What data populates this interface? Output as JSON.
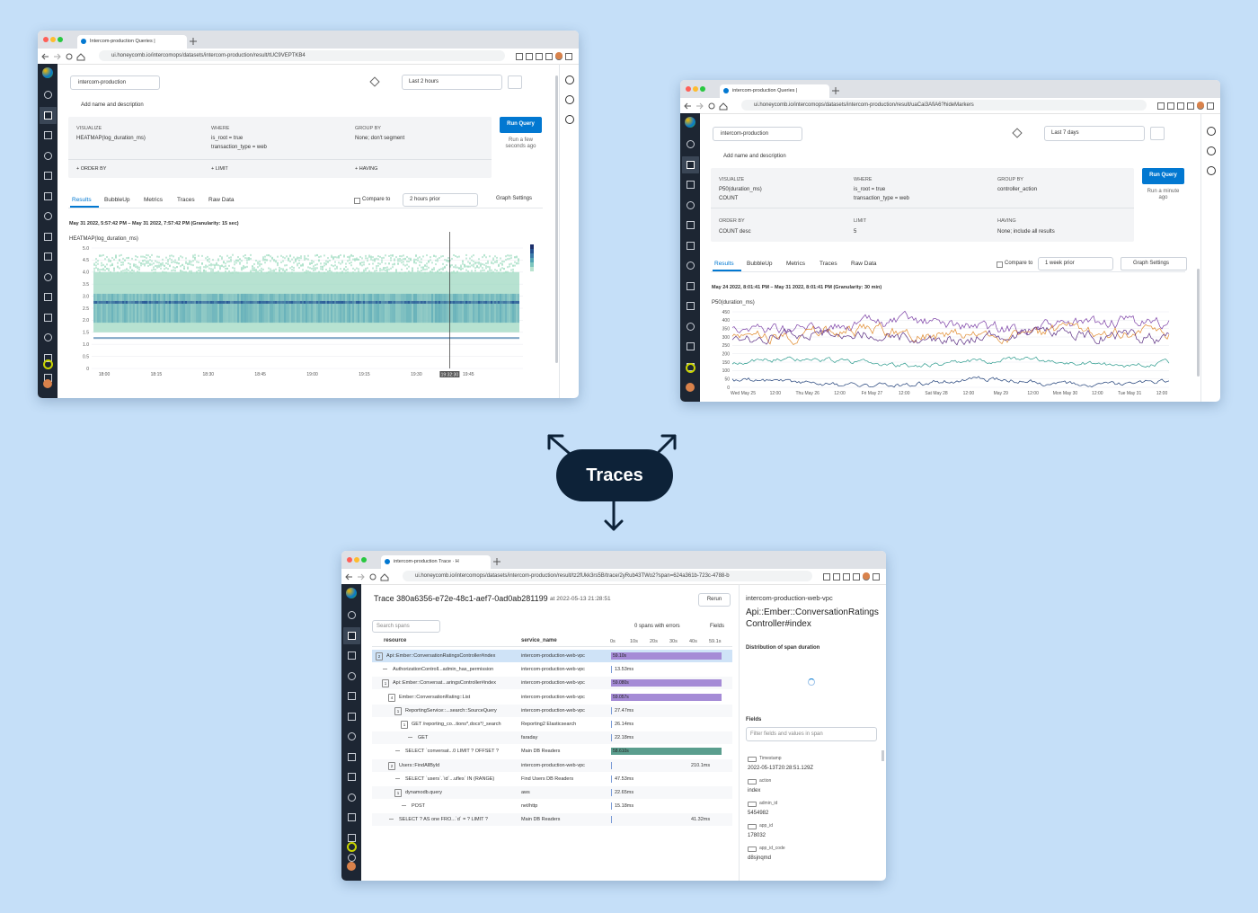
{
  "center_label": "Traces",
  "query_windows": [
    {
      "tab": "Intercom-production Queries |",
      "url": "ui.honeycomb.io/intercomops/datasets/intercom-production/result/tUC9VEPTKB4",
      "dataset": "intercom-production",
      "time_range": "Last 2 hours",
      "add_name": "Add name and description",
      "visualize_label": "VISUALIZE",
      "visualize": [
        "HEATMAP(log_duration_ms)"
      ],
      "where_label": "WHERE",
      "where": [
        "is_root = true",
        "transaction_type = web"
      ],
      "group_by_label": "GROUP BY",
      "group_by": [
        "None; don't segment"
      ],
      "clauses": [
        {
          "label": "+ ORDER BY"
        },
        {
          "label": "+ LIMIT"
        },
        {
          "label": "+ HAVING"
        }
      ],
      "run_query": "Run Query",
      "run_note": "Run a few seconds ago",
      "tabs": [
        "Results",
        "BubbleUp",
        "Metrics",
        "Traces",
        "Raw Data"
      ],
      "compare_label": "Compare to",
      "compare": "2 hours prior",
      "graph_settings": "Graph Settings",
      "range_text": "May 31 2022, 5:57:42 PM – May 31 2022, 7:57:42 PM (Granularity: 15 sec)",
      "chart_title": "HEATMAP(log_duration_ms)",
      "chart_kind": "heatmap",
      "yticks": [
        "5.0",
        "4.5",
        "4.0",
        "3.5",
        "3.0",
        "2.5",
        "2.0",
        "1.5",
        "1.0",
        "0.5",
        "0"
      ],
      "xticks": [
        "18:00",
        "18:15",
        "18:30",
        "18:45",
        "19:00",
        "19:15",
        "19:30",
        "19:45"
      ],
      "cursor_label": "19:32:30"
    },
    {
      "tab": "intercom-production Queries |",
      "url": "ui.honeycomb.io/intercomops/datasets/intercom-production/result/uaCai3AfiA6?hideMarkers",
      "dataset": "intercom-production",
      "time_range": "Last 7 days",
      "add_name": "Add name and description",
      "visualize_label": "VISUALIZE",
      "visualize": [
        "P50(duration_ms)",
        "COUNT"
      ],
      "where_label": "WHERE",
      "where": [
        "is_root = true",
        "transaction_type = web"
      ],
      "group_by_label": "GROUP BY",
      "group_by": [
        "controller_action"
      ],
      "clauses": [
        {
          "label": "ORDER BY",
          "value": "COUNT desc"
        },
        {
          "label": "LIMIT",
          "value": "5"
        },
        {
          "label": "HAVING",
          "value": "None; include all results"
        }
      ],
      "run_query": "Run Query",
      "run_note": "Run a minute ago",
      "tabs": [
        "Results",
        "BubbleUp",
        "Metrics",
        "Traces",
        "Raw Data"
      ],
      "compare_label": "Compare to",
      "compare": "1 week prior",
      "graph_settings": "Graph Settings",
      "range_text": "May 24 2022, 8:01:41 PM – May 31 2022, 8:01:41 PM (Granularity: 30 min)",
      "chart_title": "P50(duration_ms)",
      "chart_kind": "lines",
      "yticks": [
        "450",
        "400",
        "350",
        "300",
        "250",
        "200",
        "150",
        "100",
        "50",
        "0"
      ],
      "xticks": [
        "Wed May 25",
        "12:00",
        "Thu May 26",
        "12:00",
        "Fri May 27",
        "12:00",
        "Sat May 28",
        "12:00",
        "May 29",
        "12:00",
        "Mon May 30",
        "12:00",
        "Tue May 31",
        "12:00"
      ],
      "line_colors": [
        "#7b3fa6",
        "#e0892b",
        "#5a2d82",
        "#2a9a8c",
        "#1f3f78"
      ]
    }
  ],
  "trace_window": {
    "tab": "intercom-production Trace · H",
    "url": "ui.honeycomb.io/intercomops/datasets/intercom-production/result/tz2fUkk3rs5B/trace/2yRub43TWo2?span=624a361b-723c-4788-b",
    "title": "Trace 380a6356-e72e-48c1-aef7-0ad0ab281199",
    "at": "at 2022-05-13 21:28:51",
    "rerun": "Rerun",
    "search": "Search spans",
    "errors": "0 spans with errors",
    "fields_button": "Fields",
    "columns": [
      "resource",
      "service_name"
    ],
    "time_ticks": [
      "0s",
      "10s",
      "20s",
      "30s",
      "40s",
      "59.1s"
    ],
    "rows": [
      {
        "resource": "Api::Ember::ConversationRatingsController#index",
        "service": "intercom-production-web-vpc",
        "duration": "59.10s",
        "count": "2",
        "depth": 0,
        "bar_color": "#a58bd6"
      },
      {
        "resource": "AuthorizationControll...admin_has_permission",
        "service": "intercom-production-web-vpc",
        "duration": "13.53ms",
        "depth": 1
      },
      {
        "resource": "Api::Ember::Conversat...aringsController#index",
        "service": "intercom-production-web-vpc",
        "duration": "59.080s",
        "count": "1",
        "depth": 1,
        "bar_color": "#a58bd6"
      },
      {
        "resource": "Ember::ConversationRating::List",
        "service": "intercom-production-web-vpc",
        "duration": "59.057s",
        "count": "4",
        "depth": 2,
        "bar_color": "#a58bd6"
      },
      {
        "resource": "ReportingService::...search::SourceQuery",
        "service": "intercom-production-web-vpc",
        "duration": "27.47ms",
        "count": "1",
        "depth": 3
      },
      {
        "resource": "GET /reporting_co...tions*,docs*/_search",
        "service": "Reporting2 Elasticsearch",
        "duration": "26.14ms",
        "count": "1",
        "depth": 4
      },
      {
        "resource": "GET",
        "service": "faraday",
        "duration": "22.18ms",
        "depth": 5
      },
      {
        "resource": "SELECT `conversat...0 LIMIT ? OFFSET ?",
        "service": "Main DB Readers",
        "duration": "58.610s",
        "depth": 3,
        "bar_color": "#5b9e8e"
      },
      {
        "resource": "Users::FindAllById",
        "service": "intercom-production-web-vpc",
        "duration": "210.1ms",
        "count": "2",
        "depth": 2
      },
      {
        "resource": "SELECT `users`.`id`...ufles` IN (RANGE)",
        "service": "Find Users DB Readers",
        "duration": "47.53ms",
        "depth": 3
      },
      {
        "resource": "dynamodb.query",
        "service": "aws",
        "duration": "22.65ms",
        "count": "1",
        "depth": 3
      },
      {
        "resource": "POST",
        "service": "net/http",
        "duration": "15.18ms",
        "depth": 4
      },
      {
        "resource": "SELECT ? AS one FRO...`d` = ? LIMIT ?",
        "service": "Main DB Readers",
        "duration": "41.32ms",
        "depth": 2
      }
    ],
    "panel_service": "intercom-production-web-vpc",
    "panel_name": "Api::Ember::ConversationRatingsController#index",
    "distribution": "Distribution of span duration",
    "fields_title": "Fields",
    "filter": "Filter fields and values in span",
    "fields": [
      {
        "key": "Timestamp",
        "value": "2022-05-13T20:28:51.129Z"
      },
      {
        "key": "action",
        "value": "index"
      },
      {
        "key": "admin_id",
        "value": "5454982"
      },
      {
        "key": "app_id",
        "value": "178032"
      },
      {
        "key": "app_id_code",
        "value": "d8sjnqmd"
      }
    ]
  }
}
